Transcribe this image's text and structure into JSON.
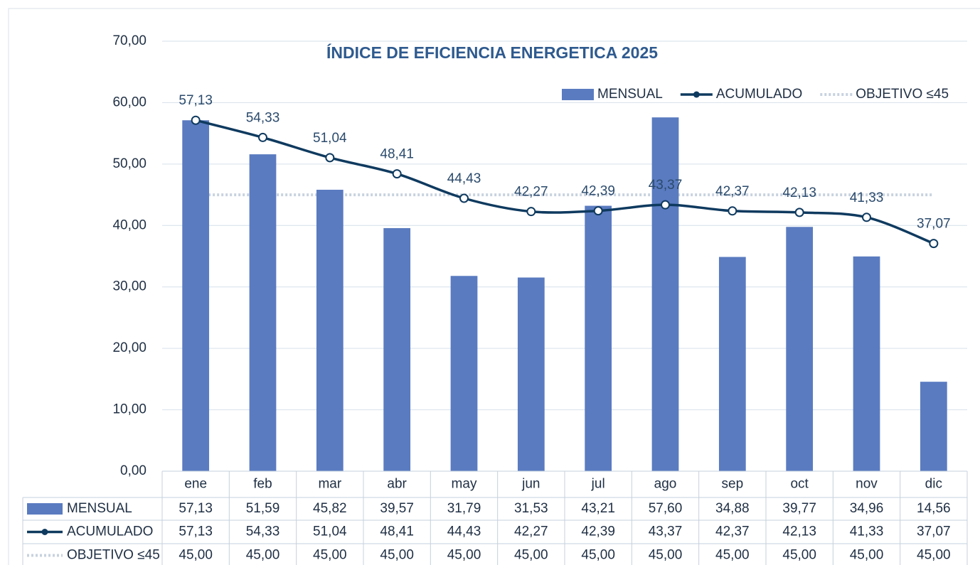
{
  "chart_data": {
    "type": "bar_line",
    "title": "ÍNDICE DE EFICIENCIA ENERGETICA 2025",
    "categories": [
      "ene",
      "feb",
      "mar",
      "abr",
      "may",
      "jun",
      "jul",
      "ago",
      "sep",
      "oct",
      "nov",
      "dic"
    ],
    "series": [
      {
        "name": "MENSUAL",
        "type": "bar",
        "color": "#5a7bc0",
        "values": [
          57.13,
          51.59,
          45.82,
          39.57,
          31.79,
          31.53,
          43.21,
          57.6,
          34.88,
          39.77,
          34.96,
          14.56
        ],
        "value_labels": [
          "57,13",
          "51,59",
          "45,82",
          "39,57",
          "31,79",
          "31,53",
          "43,21",
          "57,60",
          "34,88",
          "39,77",
          "34,96",
          "14,56"
        ]
      },
      {
        "name": "ACUMULADO",
        "type": "line",
        "color": "#0f3a5f",
        "values": [
          57.13,
          54.33,
          51.04,
          48.41,
          44.43,
          42.27,
          42.39,
          43.37,
          42.37,
          42.13,
          41.33,
          37.07
        ],
        "value_labels": [
          "57,13",
          "54,33",
          "51,04",
          "48,41",
          "44,43",
          "42,27",
          "42,39",
          "43,37",
          "42,37",
          "42,13",
          "41,33",
          "37,07"
        ]
      },
      {
        "name": "OBJETIVO ≤45",
        "type": "dotted",
        "color": "#c8d2df",
        "values": [
          45,
          45,
          45,
          45,
          45,
          45,
          45,
          45,
          45,
          45,
          45,
          45
        ],
        "value_labels": [
          "45,00",
          "45,00",
          "45,00",
          "45,00",
          "45,00",
          "45,00",
          "45,00",
          "45,00",
          "45,00",
          "45,00",
          "45,00",
          "45,00"
        ]
      }
    ],
    "ylim": [
      0,
      70
    ],
    "yticks": [
      {
        "value": 0,
        "label": "0,00"
      },
      {
        "value": 10,
        "label": "10,00"
      },
      {
        "value": 20,
        "label": "20,00"
      },
      {
        "value": 30,
        "label": "30,00"
      },
      {
        "value": 40,
        "label": "40,00"
      },
      {
        "value": 50,
        "label": "50,00"
      },
      {
        "value": 60,
        "label": "60,00"
      },
      {
        "value": 70,
        "label": "70,00"
      }
    ],
    "grid": true,
    "legend": "top-right",
    "data_table": true
  }
}
